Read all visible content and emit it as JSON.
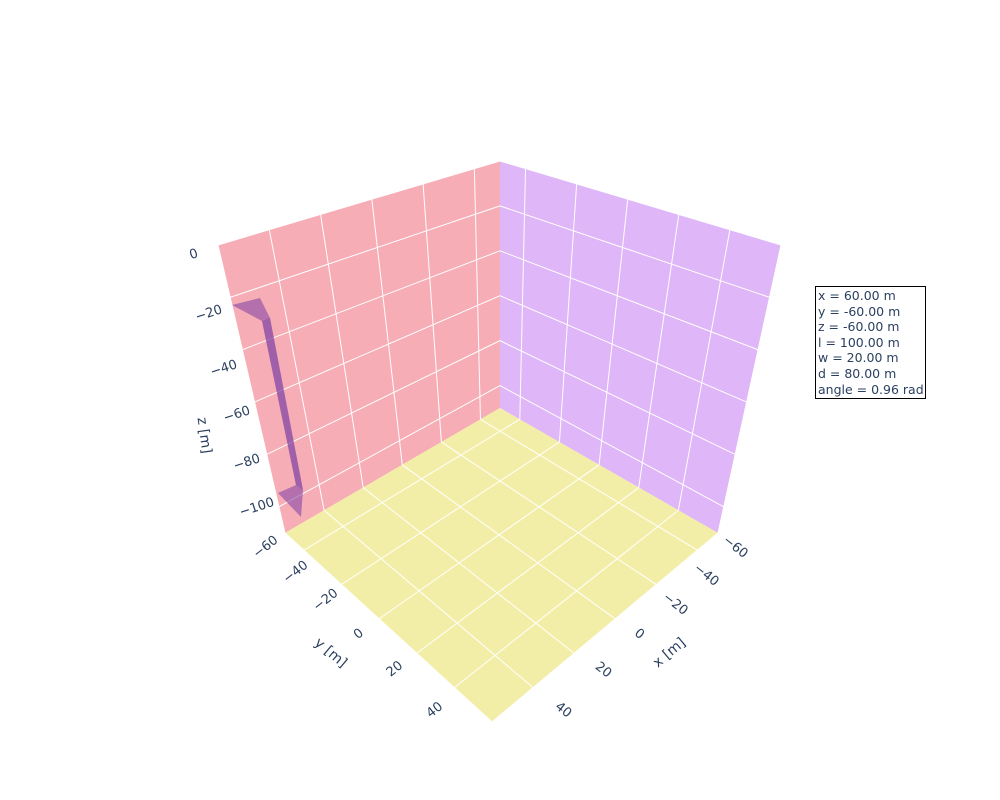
{
  "chart_data": {
    "type": "3d-surface",
    "x_axis": {
      "label": "x [m]",
      "range": [
        -60,
        50
      ],
      "ticks": [
        "−60",
        "−40",
        "−20",
        "0",
        "20",
        "40"
      ],
      "tick_values": [
        -60,
        -40,
        -20,
        0,
        20,
        40
      ]
    },
    "y_axis": {
      "label": "y [m]",
      "range": [
        -60,
        50
      ],
      "ticks": [
        "−60",
        "−40",
        "−20",
        "0",
        "20",
        "40"
      ],
      "tick_values": [
        -60,
        -40,
        -20,
        0,
        20,
        40
      ]
    },
    "z_axis": {
      "label": "z [m]",
      "range": [
        -110,
        0
      ],
      "ticks": [
        "0",
        "−20",
        "−40",
        "−60",
        "−80",
        "−100"
      ],
      "tick_values": [
        0,
        -20,
        -40,
        -60,
        -80,
        -100
      ]
    },
    "wall_colors": {
      "xz_wall": "#f7adb6",
      "yz_wall": "#dfb6f7",
      "floor": "#f3eea7"
    },
    "body_color": "#7b3ea4",
    "grid": true,
    "annotation": [
      "x = 60.00 m",
      "y = -60.00 m",
      "z = -60.00 m",
      "l = 100.00 m",
      "w = 20.00 m",
      "d = 80.00 m",
      "angle = 0.96 rad"
    ]
  }
}
